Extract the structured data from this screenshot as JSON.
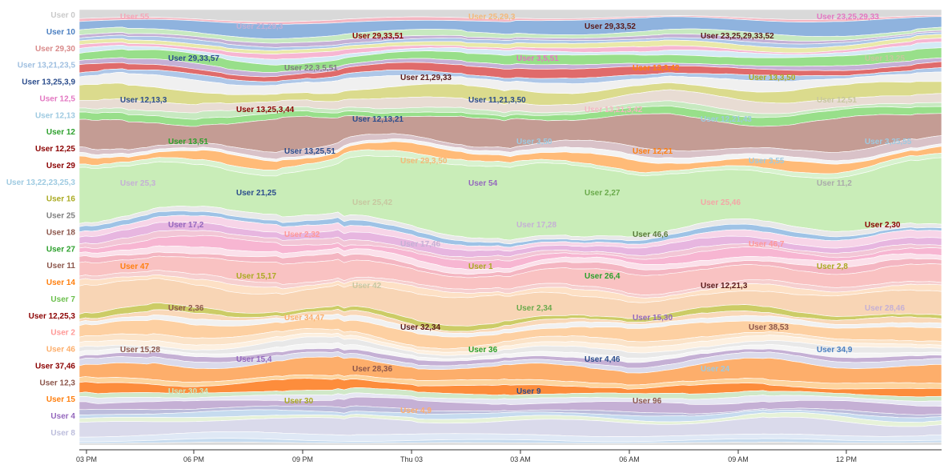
{
  "chart_data": {
    "type": "area",
    "layout": "streamgraph",
    "x_axis": {
      "ticks": [
        "03 PM",
        "06 PM",
        "09 PM",
        "Thu 03",
        "03 AM",
        "06 AM",
        "09 AM",
        "12 PM"
      ]
    },
    "series": [
      {
        "name": "User 0",
        "color": "#d9d9d9",
        "share": 0.022
      },
      {
        "name": "User 55",
        "color": "#f4b6c2",
        "share": 0.006
      },
      {
        "name": "User 10",
        "color": "#8fb3de",
        "share": 0.022
      },
      {
        "name": "User 29,33,51",
        "color": "#c7e9c0",
        "share": 0.01
      },
      {
        "name": "User 21,29,3",
        "color": "#c5b0d5",
        "share": 0.008
      },
      {
        "name": "User 13,21,23,5",
        "color": "#aec7e8",
        "share": 0.008
      },
      {
        "name": "User 13,25,3,9",
        "color": "#e9e9a8",
        "share": 0.009
      },
      {
        "name": "User 12,5",
        "color": "#f7b6d2",
        "share": 0.009
      },
      {
        "name": "User 12,13",
        "color": "#d4eaf5",
        "share": 0.009
      },
      {
        "name": "User 12",
        "color": "#98df8a",
        "share": 0.017
      },
      {
        "name": "User 12,25",
        "color": "#c5b0d5",
        "share": 0.01
      },
      {
        "name": "User 29",
        "color": "#e06b6b",
        "share": 0.019
      },
      {
        "name": "User 13,22,23,25,3",
        "color": "#aec7e8",
        "share": 0.012
      },
      {
        "name": "User 25,3",
        "color": "#f0f0f0",
        "share": 0.025
      },
      {
        "name": "User 16",
        "color": "#dbdb8d",
        "share": 0.028
      },
      {
        "name": "User 25",
        "color": "#e8dcd3",
        "share": 0.016
      },
      {
        "name": "User 18",
        "color": "#c7e9c0",
        "share": 0.013
      },
      {
        "name": "User 27",
        "color": "#98df8a",
        "share": 0.014
      },
      {
        "name": "User 11",
        "color": "#c49c94",
        "share": 0.055
      },
      {
        "name": "User 54",
        "color": "#d9c2c8",
        "share": 0.012
      },
      {
        "name": "User 25,46",
        "color": "#f3f3f3",
        "share": 0.008
      },
      {
        "name": "User 14",
        "color": "#ffbb78",
        "share": 0.018
      },
      {
        "name": "User 2,27",
        "color": "#d8f2cf",
        "share": 0.01
      },
      {
        "name": "User 7",
        "color": "#c9edb8",
        "share": 0.115
      },
      {
        "name": "User 11,2",
        "color": "#e8e8e8",
        "share": 0.01
      },
      {
        "name": "User 17,2",
        "color": "#9ec3e6",
        "share": 0.01
      },
      {
        "name": "User 26,46",
        "color": "#f7d5e8",
        "share": 0.015
      },
      {
        "name": "User 2,32",
        "color": "#e7b6e0",
        "share": 0.016
      },
      {
        "name": "User 12,25,3",
        "color": "#f2c6d6",
        "share": 0.012
      },
      {
        "name": "User 46,6",
        "color": "#f7b6d2",
        "share": 0.018
      },
      {
        "name": "User 46,7",
        "color": "#fbe0ea",
        "share": 0.012
      },
      {
        "name": "User 2,30",
        "color": "#f4b6c2",
        "share": 0.012
      },
      {
        "name": "User 2",
        "color": "#f9c2c2",
        "share": 0.038
      },
      {
        "name": "User 15,17",
        "color": "#f6cfcf",
        "share": 0.01
      },
      {
        "name": "User 47",
        "color": "#fde0c5",
        "share": 0.012
      },
      {
        "name": "User 42",
        "color": "#f8d5b5",
        "share": 0.055
      },
      {
        "name": "User 1",
        "color": "#cccc66",
        "share": 0.012
      },
      {
        "name": "User 26,4",
        "color": "#f9d8b8",
        "share": 0.01
      },
      {
        "name": "User 12,21,3",
        "color": "#f1f1f1",
        "share": 0.01
      },
      {
        "name": "User 46",
        "color": "#fdd0a2",
        "share": 0.03
      },
      {
        "name": "User 2,8",
        "color": "#fbe3c8",
        "share": 0.012
      },
      {
        "name": "User 2,36",
        "color": "#fdf0e0",
        "share": 0.01
      },
      {
        "name": "User 37,46",
        "color": "#e8e8e8",
        "share": 0.01
      },
      {
        "name": "User 32,34",
        "color": "#f5f5f5",
        "share": 0.009
      },
      {
        "name": "User 15,30",
        "color": "#c5b0d5",
        "share": 0.01
      },
      {
        "name": "User 38,53",
        "color": "#dadaeb",
        "share": 0.012
      },
      {
        "name": "User 15",
        "color": "#fdae6b",
        "share": 0.028
      },
      {
        "name": "User 15,28",
        "color": "#fdd49e",
        "share": 0.01
      },
      {
        "name": "User 28,36",
        "color": "#fd8d3c",
        "share": 0.02
      },
      {
        "name": "User 36",
        "color": "#d0e8c8",
        "share": 0.008
      },
      {
        "name": "User 15,4",
        "color": "#e6e6f2",
        "share": 0.01
      },
      {
        "name": "User 4",
        "color": "#c5b0d5",
        "share": 0.022
      },
      {
        "name": "User 4,46",
        "color": "#bcbddc",
        "share": 0.01
      },
      {
        "name": "User 34,9",
        "color": "#c6dbef",
        "share": 0.01
      },
      {
        "name": "User 30,34",
        "color": "#e6f2d8",
        "share": 0.008
      },
      {
        "name": "User 8",
        "color": "#dadaeb",
        "share": 0.03
      },
      {
        "name": "User 24",
        "color": "#dfe8f5",
        "share": 0.012
      },
      {
        "name": "User 9",
        "color": "#c6dbef",
        "share": 0.006
      },
      {
        "name": "User 96",
        "color": "#d9d9d9",
        "share": 0.005
      }
    ],
    "left_labels": [
      {
        "text": "User 0",
        "color": "#c9c9c9"
      },
      {
        "text": "User 10",
        "color": "#4a7fc1"
      },
      {
        "text": "User 29,30",
        "color": "#d98a8a"
      },
      {
        "text": "User 13,21,23,5",
        "color": "#9fbfe0"
      },
      {
        "text": "User 13,25,3,9",
        "color": "#2b4c8c"
      },
      {
        "text": "User 12,5",
        "color": "#e377c2"
      },
      {
        "text": "User 12,13",
        "color": "#9ecae1"
      },
      {
        "text": "User 12",
        "color": "#2ca02c"
      },
      {
        "text": "User 12,25",
        "color": "#8b0000"
      },
      {
        "text": "User 29",
        "color": "#8b0000"
      },
      {
        "text": "User 13,22,23,25,3",
        "color": "#9ecae1"
      },
      {
        "text": "User 16",
        "color": "#aaaa22"
      },
      {
        "text": "User 25",
        "color": "#7f7f7f"
      },
      {
        "text": "User 18",
        "color": "#8c564b"
      },
      {
        "text": "User 27",
        "color": "#2ca02c"
      },
      {
        "text": "User 11",
        "color": "#8c564b"
      },
      {
        "text": "User 14",
        "color": "#ff7f0e"
      },
      {
        "text": "User 7",
        "color": "#6abf4b"
      },
      {
        "text": "User 12,25,3",
        "color": "#8b0000"
      },
      {
        "text": "User 2",
        "color": "#ff9896"
      },
      {
        "text": "User 46",
        "color": "#fdae6b"
      },
      {
        "text": "User 37,46",
        "color": "#8b0000"
      },
      {
        "text": "User 12,3",
        "color": "#8c564b"
      },
      {
        "text": "User 15",
        "color": "#ff7f0e"
      },
      {
        "text": "User 4",
        "color": "#9467bd"
      },
      {
        "text": "User 8",
        "color": "#bcbddc"
      }
    ],
    "inline_labels": [
      {
        "text": "User 55",
        "color": "#f4a6b8"
      },
      {
        "text": "User 21,29,3",
        "color": "#c5b0d5"
      },
      {
        "text": "User 29,33,51",
        "color": "#8b0000"
      },
      {
        "text": "User 25,29,3",
        "color": "#f4b97a"
      },
      {
        "text": "User 29,33,52",
        "color": "#5a1a1a"
      },
      {
        "text": "User 23,25,29,33,52",
        "color": "#5a1a1a"
      },
      {
        "text": "User 23,25,29,33",
        "color": "#e377c2"
      },
      {
        "text": "User 29,33,57",
        "color": "#2b4c8c"
      },
      {
        "text": "User 22,3,5,51",
        "color": "#7f7f7f"
      },
      {
        "text": "User 21,29,33",
        "color": "#5a1a1a"
      },
      {
        "text": "User 3,5,51",
        "color": "#e377c2"
      },
      {
        "text": "User 13,3,42",
        "color": "#ff7f0e"
      },
      {
        "text": "User 13,3,50",
        "color": "#aaaa22"
      },
      {
        "text": "User 13,25",
        "color": "#c7c7a0"
      },
      {
        "text": "User 12,13,3",
        "color": "#2b4c8c"
      },
      {
        "text": "User 13,25,3,44",
        "color": "#8b0000"
      },
      {
        "text": "User 12,13,21",
        "color": "#2b4c8c"
      },
      {
        "text": "User 11,21,3,50",
        "color": "#2b4c8c"
      },
      {
        "text": "User 13,21,3,42",
        "color": "#f4b6c2"
      },
      {
        "text": "User 12,21,43",
        "color": "#9ecae1"
      },
      {
        "text": "User 12,51",
        "color": "#c7c7a0"
      },
      {
        "text": "User 13,51",
        "color": "#2ca02c"
      },
      {
        "text": "User 13,25,51",
        "color": "#2b4c8c"
      },
      {
        "text": "User 29,3,50",
        "color": "#f4b97a"
      },
      {
        "text": "User 3,50",
        "color": "#9ecae1"
      },
      {
        "text": "User 12,21",
        "color": "#ff7f0e"
      },
      {
        "text": "User 3,55",
        "color": "#9ecae1"
      },
      {
        "text": "User 3,35,55",
        "color": "#9ecae1"
      },
      {
        "text": "User 25,3",
        "color": "#c5b0d5"
      },
      {
        "text": "User 21,25",
        "color": "#2b4c8c"
      },
      {
        "text": "User 25,42",
        "color": "#c7c7a0"
      },
      {
        "text": "User 54",
        "color": "#9467bd"
      },
      {
        "text": "User 2,27",
        "color": "#6aaa4b"
      },
      {
        "text": "User 25,46",
        "color": "#f4a6a6"
      },
      {
        "text": "User 11,2",
        "color": "#aaaaaa"
      },
      {
        "text": "User 17,2",
        "color": "#9467bd"
      },
      {
        "text": "User 2,32",
        "color": "#ff9896"
      },
      {
        "text": "User 17,46",
        "color": "#c5b0d5"
      },
      {
        "text": "User 17,28",
        "color": "#c5b0d5"
      },
      {
        "text": "User 46,6",
        "color": "#5a7a3a"
      },
      {
        "text": "User 46,7",
        "color": "#ff9896"
      },
      {
        "text": "User 2,30",
        "color": "#8b0000"
      },
      {
        "text": "User 47",
        "color": "#ff7f0e"
      },
      {
        "text": "User 15,17",
        "color": "#aaaa22"
      },
      {
        "text": "User 42",
        "color": "#c7c7a0"
      },
      {
        "text": "User 1",
        "color": "#aaaa22"
      },
      {
        "text": "User 26,4",
        "color": "#2ca02c"
      },
      {
        "text": "User 12,21,3",
        "color": "#5a1a1a"
      },
      {
        "text": "User 2,8",
        "color": "#aaaa22"
      },
      {
        "text": "User 2,36",
        "color": "#8c564b"
      },
      {
        "text": "User 34,47",
        "color": "#fdae6b"
      },
      {
        "text": "User 32,34",
        "color": "#5a1a1a"
      },
      {
        "text": "User 2,34",
        "color": "#6aaa4b"
      },
      {
        "text": "User 15,30",
        "color": "#9467bd"
      },
      {
        "text": "User 38,53",
        "color": "#8c564b"
      },
      {
        "text": "User 28,46",
        "color": "#c5b0d5"
      },
      {
        "text": "User 15,28",
        "color": "#8c564b"
      },
      {
        "text": "User 15,4",
        "color": "#9467bd"
      },
      {
        "text": "User 28,36",
        "color": "#8c564b"
      },
      {
        "text": "User 36",
        "color": "#2ca02c"
      },
      {
        "text": "User 4,46",
        "color": "#2b4c8c"
      },
      {
        "text": "User 24",
        "color": "#9ecae1"
      },
      {
        "text": "User 34,9",
        "color": "#4a7fc1"
      },
      {
        "text": "User 30,34",
        "color": "#c7e9c0"
      },
      {
        "text": "User 30",
        "color": "#aaaa22"
      },
      {
        "text": "User 4,9",
        "color": "#fdae6b"
      },
      {
        "text": "User 9",
        "color": "#2b4c8c"
      },
      {
        "text": "User 96",
        "color": "#8c564b"
      }
    ]
  }
}
